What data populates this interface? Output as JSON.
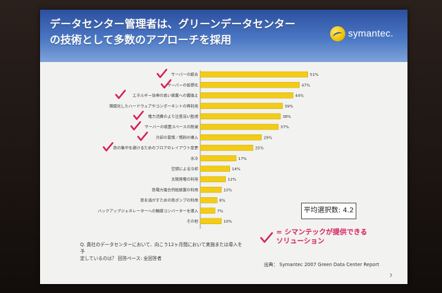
{
  "slide": {
    "title_line1": "データセンター管理者は、グリーンデータセンター",
    "title_line2": "の技術として多数のアプローチを採用",
    "logo_text": "symantec.",
    "average": "平均選択数: 4.2",
    "legend_text_line1": "= シマンテックが提供できる",
    "legend_text_line2": "ソリューション",
    "question_line1": "Q. 貴社のデータセンターにおいて、向こう12ヶ月間において実施または導入を予",
    "question_line2": "定しているのは？  回答ベース: 全回答者",
    "source": "出典： Symantec 2007 Green Data Center Report",
    "page_number": "7",
    "colors": {
      "bar": "#f2cc16",
      "check": "#d81b60",
      "header": "#3a63b3"
    }
  },
  "chart_data": {
    "type": "bar",
    "orientation": "horizontal",
    "unit": "%",
    "categories": [
      "サーバーの統合",
      "サーバーの仮想化",
      "エネルギー効率の高い装置への置換え",
      "陳腐化したハードウェアやコンポーネントの再利用",
      "電力消費のより注意深い監視",
      "サーバーの設置スペースの削減",
      "冷却の習慣／規則の導入",
      "熱の集中を避けるためのフロアのレイアウト変更",
      "水冷",
      "空調による冷却",
      "太陽発電の利用",
      "熱電力複合供給装置の利用",
      "熱を逃がすための熱ポンプの利用",
      "バックアップジェネレーターへの触媒コンバーターを導入",
      "その他"
    ],
    "values": [
      51,
      47,
      44,
      39,
      38,
      37,
      29,
      25,
      17,
      14,
      12,
      10,
      8,
      7,
      10
    ],
    "value_labels": [
      "51%",
      "47%",
      "44%",
      "39%",
      "38%",
      "37%",
      "29%",
      "25%",
      "17%",
      "14%",
      "12%",
      "10%",
      "8%",
      "7%",
      "10%"
    ],
    "symantec_solution": [
      true,
      true,
      true,
      false,
      true,
      true,
      true,
      true,
      false,
      false,
      false,
      false,
      false,
      false,
      false
    ],
    "xlim": [
      0,
      55
    ],
    "grid": false,
    "legend": "bottom-right"
  }
}
